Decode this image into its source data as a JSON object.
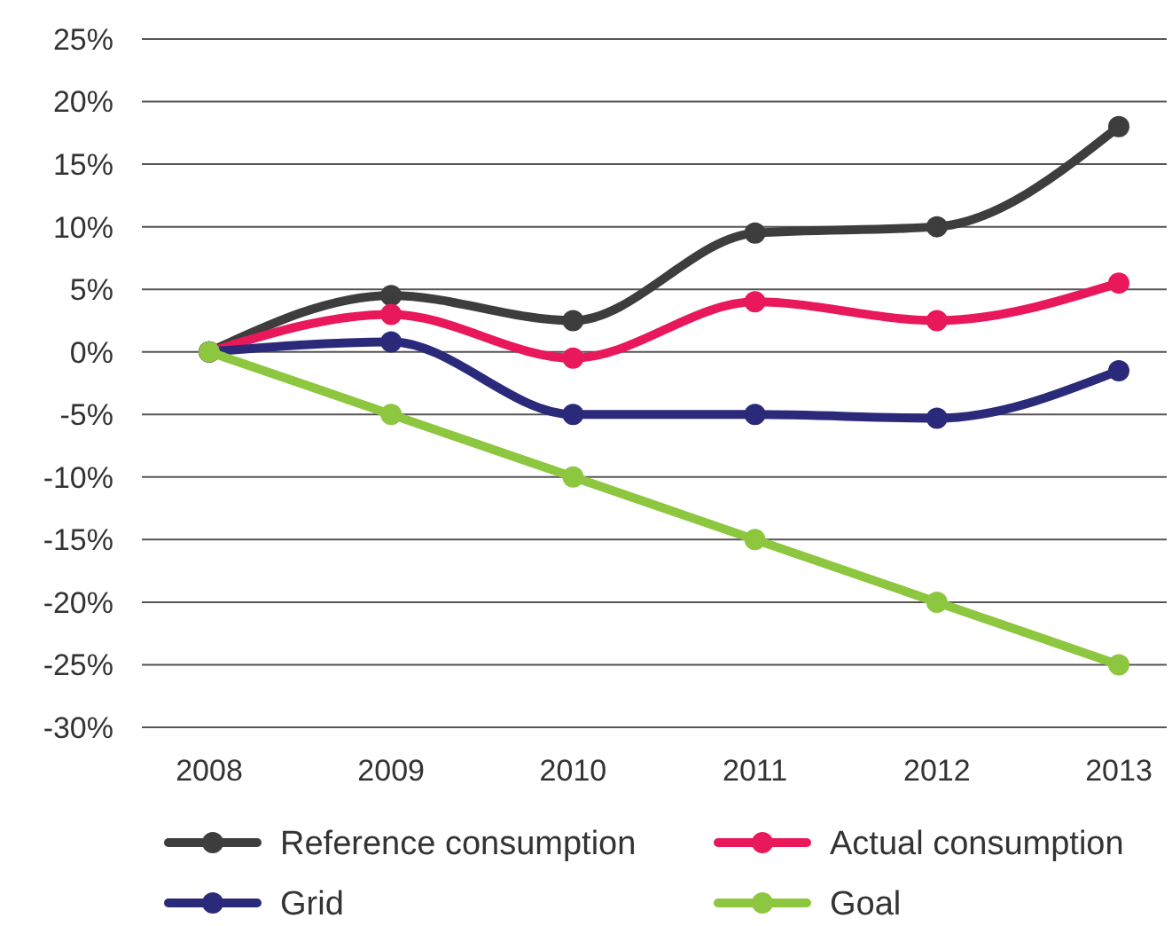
{
  "chart_data": {
    "type": "line",
    "categories": [
      "2008",
      "2009",
      "2010",
      "2011",
      "2012",
      "2013"
    ],
    "series": [
      {
        "name": "Reference consumption",
        "color": "#3d3d3d",
        "values": [
          0,
          4.5,
          2.5,
          9.5,
          10,
          18
        ]
      },
      {
        "name": "Actual consumption",
        "color": "#e8185a",
        "values": [
          0,
          3,
          -0.5,
          4,
          2.5,
          5.5
        ]
      },
      {
        "name": "Grid",
        "color": "#2b2a7a",
        "values": [
          0,
          0.8,
          -5,
          -5,
          -5.3,
          -1.5
        ]
      },
      {
        "name": "Goal",
        "color": "#8dc63f",
        "values": [
          0,
          -5,
          -10,
          -15,
          -20,
          -25
        ]
      }
    ],
    "ylim": [
      -30,
      25
    ],
    "yticks": [
      {
        "value": -30,
        "label": "-30%"
      },
      {
        "value": -25,
        "label": "-25%"
      },
      {
        "value": -20,
        "label": "-20%"
      },
      {
        "value": -15,
        "label": "-15%"
      },
      {
        "value": -10,
        "label": "-10%"
      },
      {
        "value": -5,
        "label": "-5%"
      },
      {
        "value": 0,
        "label": "0%"
      },
      {
        "value": 5,
        "label": "5%"
      },
      {
        "value": 10,
        "label": "10%"
      },
      {
        "value": 15,
        "label": "15%"
      },
      {
        "value": 20,
        "label": "20%"
      },
      {
        "value": 25,
        "label": "25%"
      }
    ],
    "grid": "y",
    "legend": "bottom",
    "marker": "circle",
    "line_style": "solid"
  }
}
